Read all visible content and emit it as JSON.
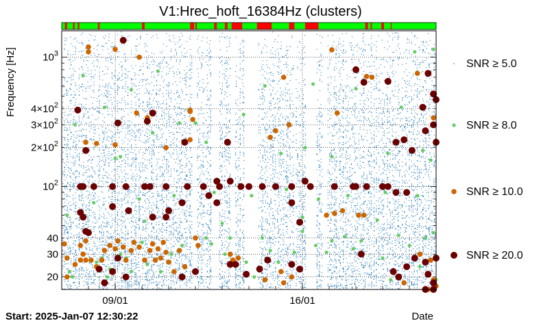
{
  "chart_data": {
    "type": "scatter",
    "title": "V1:Hrec_hoft_16384Hz (clusters)",
    "xlabel": "Date",
    "ylabel": "Frequency [Hz]",
    "start_label": "Start: 2025-Jan-07 12:30:22",
    "x_unit": "days",
    "xlim": [
      0,
      14
    ],
    "ylim": [
      16,
      1600
    ],
    "y_scale": "log",
    "x_ticks": [
      {
        "value": 2.0,
        "label": "09/01"
      },
      {
        "value": 9.0,
        "label": "16/01"
      }
    ],
    "y_ticks": [
      {
        "value": 20,
        "label": "20"
      },
      {
        "value": 30,
        "label": "30"
      },
      {
        "value": 40,
        "label": "40"
      },
      {
        "value": 100,
        "label": "10",
        "exp": "2"
      },
      {
        "value": 200,
        "label": "2×10",
        "exp": "2"
      },
      {
        "value": 300,
        "label": "3×10",
        "exp": "2"
      },
      {
        "value": 400,
        "label": "4×10",
        "exp": "2"
      },
      {
        "value": 1000,
        "label": "10",
        "exp": "3"
      }
    ],
    "grid": true,
    "legend_position": "right",
    "colors": {
      "snr5": "#1f77b4",
      "snr8": "#66cc66",
      "snr10": "#cc6600",
      "snr20": "#6b0000",
      "ok": "#00ff00",
      "bad": "#ff0000"
    },
    "series": [
      {
        "name": "SNR ≥ 5.0",
        "threshold": 5.0
      },
      {
        "name": "SNR ≥ 8.0",
        "threshold": 8.0
      },
      {
        "name": "SNR ≥ 10.0",
        "threshold": 10.0
      },
      {
        "name": "SNR ≥ 20.0",
        "threshold": 20.0
      }
    ],
    "segments_bad": [
      [
        0.12,
        0.2
      ],
      [
        0.42,
        0.48
      ],
      [
        0.6,
        0.66
      ],
      [
        1.35,
        1.42
      ],
      [
        3.0,
        3.1
      ],
      [
        4.8,
        4.95
      ],
      [
        5.0,
        5.05
      ],
      [
        5.7,
        5.8
      ],
      [
        6.1,
        6.2
      ],
      [
        6.35,
        6.75
      ],
      [
        7.3,
        7.85
      ],
      [
        8.5,
        8.7
      ],
      [
        9.1,
        9.6
      ],
      [
        11.35,
        11.45
      ],
      [
        11.55,
        11.6
      ],
      [
        11.95,
        12.05
      ],
      [
        12.3,
        12.33
      ]
    ],
    "points_snr20": [
      [
        0.6,
        390
      ],
      [
        0.9,
        190
      ],
      [
        0.7,
        100
      ],
      [
        0.8,
        100
      ],
      [
        1.2,
        100
      ],
      [
        1.9,
        100
      ],
      [
        2.4,
        100
      ],
      [
        3.1,
        100
      ],
      [
        3.3,
        100
      ],
      [
        3.9,
        100
      ],
      [
        4.7,
        100
      ],
      [
        5.3,
        100
      ],
      [
        5.8,
        110
      ],
      [
        5.9,
        100
      ],
      [
        6.3,
        110
      ],
      [
        6.7,
        100
      ],
      [
        7.0,
        100
      ],
      [
        7.5,
        100
      ],
      [
        8.0,
        100
      ],
      [
        8.6,
        100
      ],
      [
        9.1,
        110
      ],
      [
        9.3,
        100
      ],
      [
        10.2,
        100
      ],
      [
        10.9,
        100
      ],
      [
        11.0,
        100
      ],
      [
        11.4,
        100
      ],
      [
        12.0,
        100
      ],
      [
        12.2,
        100
      ],
      [
        12.5,
        90
      ],
      [
        12.9,
        90
      ],
      [
        2.3,
        1350
      ],
      [
        2.1,
        310
      ],
      [
        3.2,
        320
      ],
      [
        3.4,
        370
      ],
      [
        4.6,
        220
      ],
      [
        6.2,
        220
      ],
      [
        11.0,
        800
      ],
      [
        11.3,
        640
      ],
      [
        12.2,
        650
      ],
      [
        13.7,
        750
      ],
      [
        13.9,
        520
      ],
      [
        13.5,
        410
      ],
      [
        14.0,
        470
      ],
      [
        13.9,
        300
      ],
      [
        13.6,
        270
      ],
      [
        12.8,
        230
      ],
      [
        12.5,
        220
      ],
      [
        14.0,
        220
      ],
      [
        13.1,
        190
      ],
      [
        0.7,
        63
      ],
      [
        0.8,
        58
      ],
      [
        1.9,
        70
      ],
      [
        2.5,
        65
      ],
      [
        3.4,
        58
      ],
      [
        3.9,
        58
      ],
      [
        4.0,
        65
      ],
      [
        4.5,
        75
      ],
      [
        5.5,
        85
      ],
      [
        5.8,
        75
      ],
      [
        8.6,
        75
      ],
      [
        8.9,
        53
      ],
      [
        0.9,
        45
      ],
      [
        1.0,
        44
      ],
      [
        1.4,
        23
      ],
      [
        1.6,
        18
      ],
      [
        1.9,
        22
      ],
      [
        2.1,
        28
      ],
      [
        2.4,
        20
      ],
      [
        4.5,
        20
      ],
      [
        5.0,
        22
      ],
      [
        6.3,
        25
      ],
      [
        6.5,
        25
      ],
      [
        6.9,
        21
      ],
      [
        7.4,
        23
      ],
      [
        7.7,
        27
      ],
      [
        8.6,
        25
      ],
      [
        8.9,
        23
      ],
      [
        11.2,
        30
      ],
      [
        12.4,
        22
      ],
      [
        12.6,
        20
      ],
      [
        12.9,
        24
      ],
      [
        13.2,
        28
      ],
      [
        13.6,
        26
      ],
      [
        13.7,
        21
      ],
      [
        13.9,
        18
      ],
      [
        13.6,
        16
      ],
      [
        13.9,
        16
      ],
      [
        14.0,
        28
      ]
    ],
    "points_snr10": [
      [
        1.0,
        1200
      ],
      [
        1.0,
        1100
      ],
      [
        2.0,
        1150
      ],
      [
        2.9,
        1000
      ],
      [
        0.9,
        220
      ],
      [
        1.3,
        215
      ],
      [
        2.0,
        210
      ],
      [
        2.8,
        370
      ],
      [
        3.2,
        340
      ],
      [
        3.9,
        200
      ],
      [
        4.8,
        230
      ],
      [
        4.8,
        390
      ],
      [
        4.9,
        330
      ],
      [
        4.8,
        380
      ],
      [
        7.8,
        240
      ],
      [
        8.0,
        270
      ],
      [
        8.5,
        300
      ],
      [
        8.3,
        700
      ],
      [
        10.1,
        1140
      ],
      [
        10.3,
        370
      ],
      [
        11.4,
        710
      ],
      [
        11.6,
        700
      ],
      [
        13.3,
        750
      ],
      [
        13.9,
        340
      ],
      [
        0.1,
        36
      ],
      [
        0.2,
        28
      ],
      [
        0.2,
        20
      ],
      [
        0.5,
        25
      ],
      [
        0.7,
        27
      ],
      [
        0.7,
        35
      ],
      [
        0.8,
        30
      ],
      [
        0.9,
        38
      ],
      [
        0.9,
        27
      ],
      [
        1.1,
        27
      ],
      [
        1.3,
        24
      ],
      [
        1.5,
        27
      ],
      [
        1.6,
        32
      ],
      [
        1.8,
        35
      ],
      [
        2.0,
        33
      ],
      [
        2.1,
        38
      ],
      [
        2.3,
        34
      ],
      [
        2.4,
        27
      ],
      [
        2.6,
        32
      ],
      [
        2.7,
        37
      ],
      [
        2.9,
        34
      ],
      [
        3.1,
        27
      ],
      [
        3.3,
        32
      ],
      [
        3.4,
        36
      ],
      [
        3.5,
        27
      ],
      [
        3.6,
        33
      ],
      [
        3.7,
        28
      ],
      [
        3.8,
        37
      ],
      [
        3.9,
        31
      ],
      [
        4.0,
        26
      ],
      [
        4.2,
        22
      ],
      [
        4.4,
        32
      ],
      [
        4.6,
        24
      ],
      [
        5.0,
        40
      ],
      [
        5.1,
        35
      ],
      [
        6.3,
        30
      ],
      [
        6.4,
        27
      ],
      [
        6.6,
        28
      ],
      [
        7.6,
        19
      ],
      [
        8.2,
        22
      ],
      [
        8.3,
        18
      ],
      [
        8.6,
        20
      ],
      [
        9.9,
        60
      ],
      [
        10.2,
        62
      ],
      [
        10.5,
        65
      ],
      [
        11.1,
        60
      ],
      [
        11.3,
        60
      ],
      [
        13.4,
        30
      ],
      [
        13.8,
        27
      ],
      [
        13.9,
        19
      ],
      [
        14.0,
        17
      ],
      [
        13.7,
        16
      ],
      [
        12.8,
        18
      ]
    ],
    "points_snr8": [
      [
        0.3,
        22
      ],
      [
        0.4,
        20
      ],
      [
        1.3,
        26
      ],
      [
        1.5,
        28
      ],
      [
        1.7,
        20
      ],
      [
        1.8,
        23
      ],
      [
        2.2,
        30
      ],
      [
        2.4,
        28
      ],
      [
        2.6,
        22
      ],
      [
        3.0,
        37
      ],
      [
        3.2,
        25
      ],
      [
        3.7,
        22
      ],
      [
        4.1,
        30
      ],
      [
        4.5,
        35
      ],
      [
        5.4,
        40
      ],
      [
        5.6,
        36
      ],
      [
        6.1,
        30
      ],
      [
        6.3,
        40
      ],
      [
        6.9,
        26
      ],
      [
        7.2,
        20
      ],
      [
        7.5,
        40
      ],
      [
        7.8,
        32
      ],
      [
        8.1,
        26
      ],
      [
        8.7,
        31
      ],
      [
        9.0,
        45
      ],
      [
        9.5,
        35
      ],
      [
        9.9,
        31
      ],
      [
        10.1,
        38
      ],
      [
        10.6,
        41
      ],
      [
        10.9,
        33
      ],
      [
        11.2,
        38
      ],
      [
        12.0,
        28
      ],
      [
        12.3,
        19
      ],
      [
        12.6,
        42
      ],
      [
        13.0,
        35
      ],
      [
        13.4,
        24
      ],
      [
        13.6,
        40
      ],
      [
        13.9,
        44
      ],
      [
        14.0,
        19
      ],
      [
        2.0,
        165
      ],
      [
        2.2,
        170
      ],
      [
        3.4,
        260
      ],
      [
        5.0,
        310
      ],
      [
        5.4,
        220
      ],
      [
        6.8,
        360
      ],
      [
        8.2,
        180
      ],
      [
        9.1,
        200
      ],
      [
        10.1,
        170
      ],
      [
        12.2,
        180
      ],
      [
        13.5,
        190
      ],
      [
        13.8,
        160
      ],
      [
        0.5,
        300
      ],
      [
        0.8,
        720
      ],
      [
        1.6,
        410
      ],
      [
        2.6,
        560
      ],
      [
        3.6,
        780
      ],
      [
        4.4,
        310
      ],
      [
        7.6,
        600
      ],
      [
        9.4,
        620
      ],
      [
        11.0,
        570
      ],
      [
        12.7,
        410
      ],
      [
        13.2,
        1100
      ],
      [
        13.9,
        1150
      ],
      [
        1.2,
        75
      ],
      [
        2.9,
        80
      ],
      [
        4.2,
        85
      ],
      [
        5.7,
        90
      ],
      [
        7.1,
        85
      ],
      [
        8.4,
        95
      ],
      [
        9.6,
        80
      ],
      [
        10.7,
        85
      ],
      [
        12.1,
        90
      ],
      [
        13.3,
        85
      ],
      [
        0.2,
        60
      ],
      [
        3.1,
        54
      ],
      [
        6.0,
        52
      ],
      [
        9.0,
        58
      ],
      [
        11.8,
        55
      ]
    ]
  }
}
